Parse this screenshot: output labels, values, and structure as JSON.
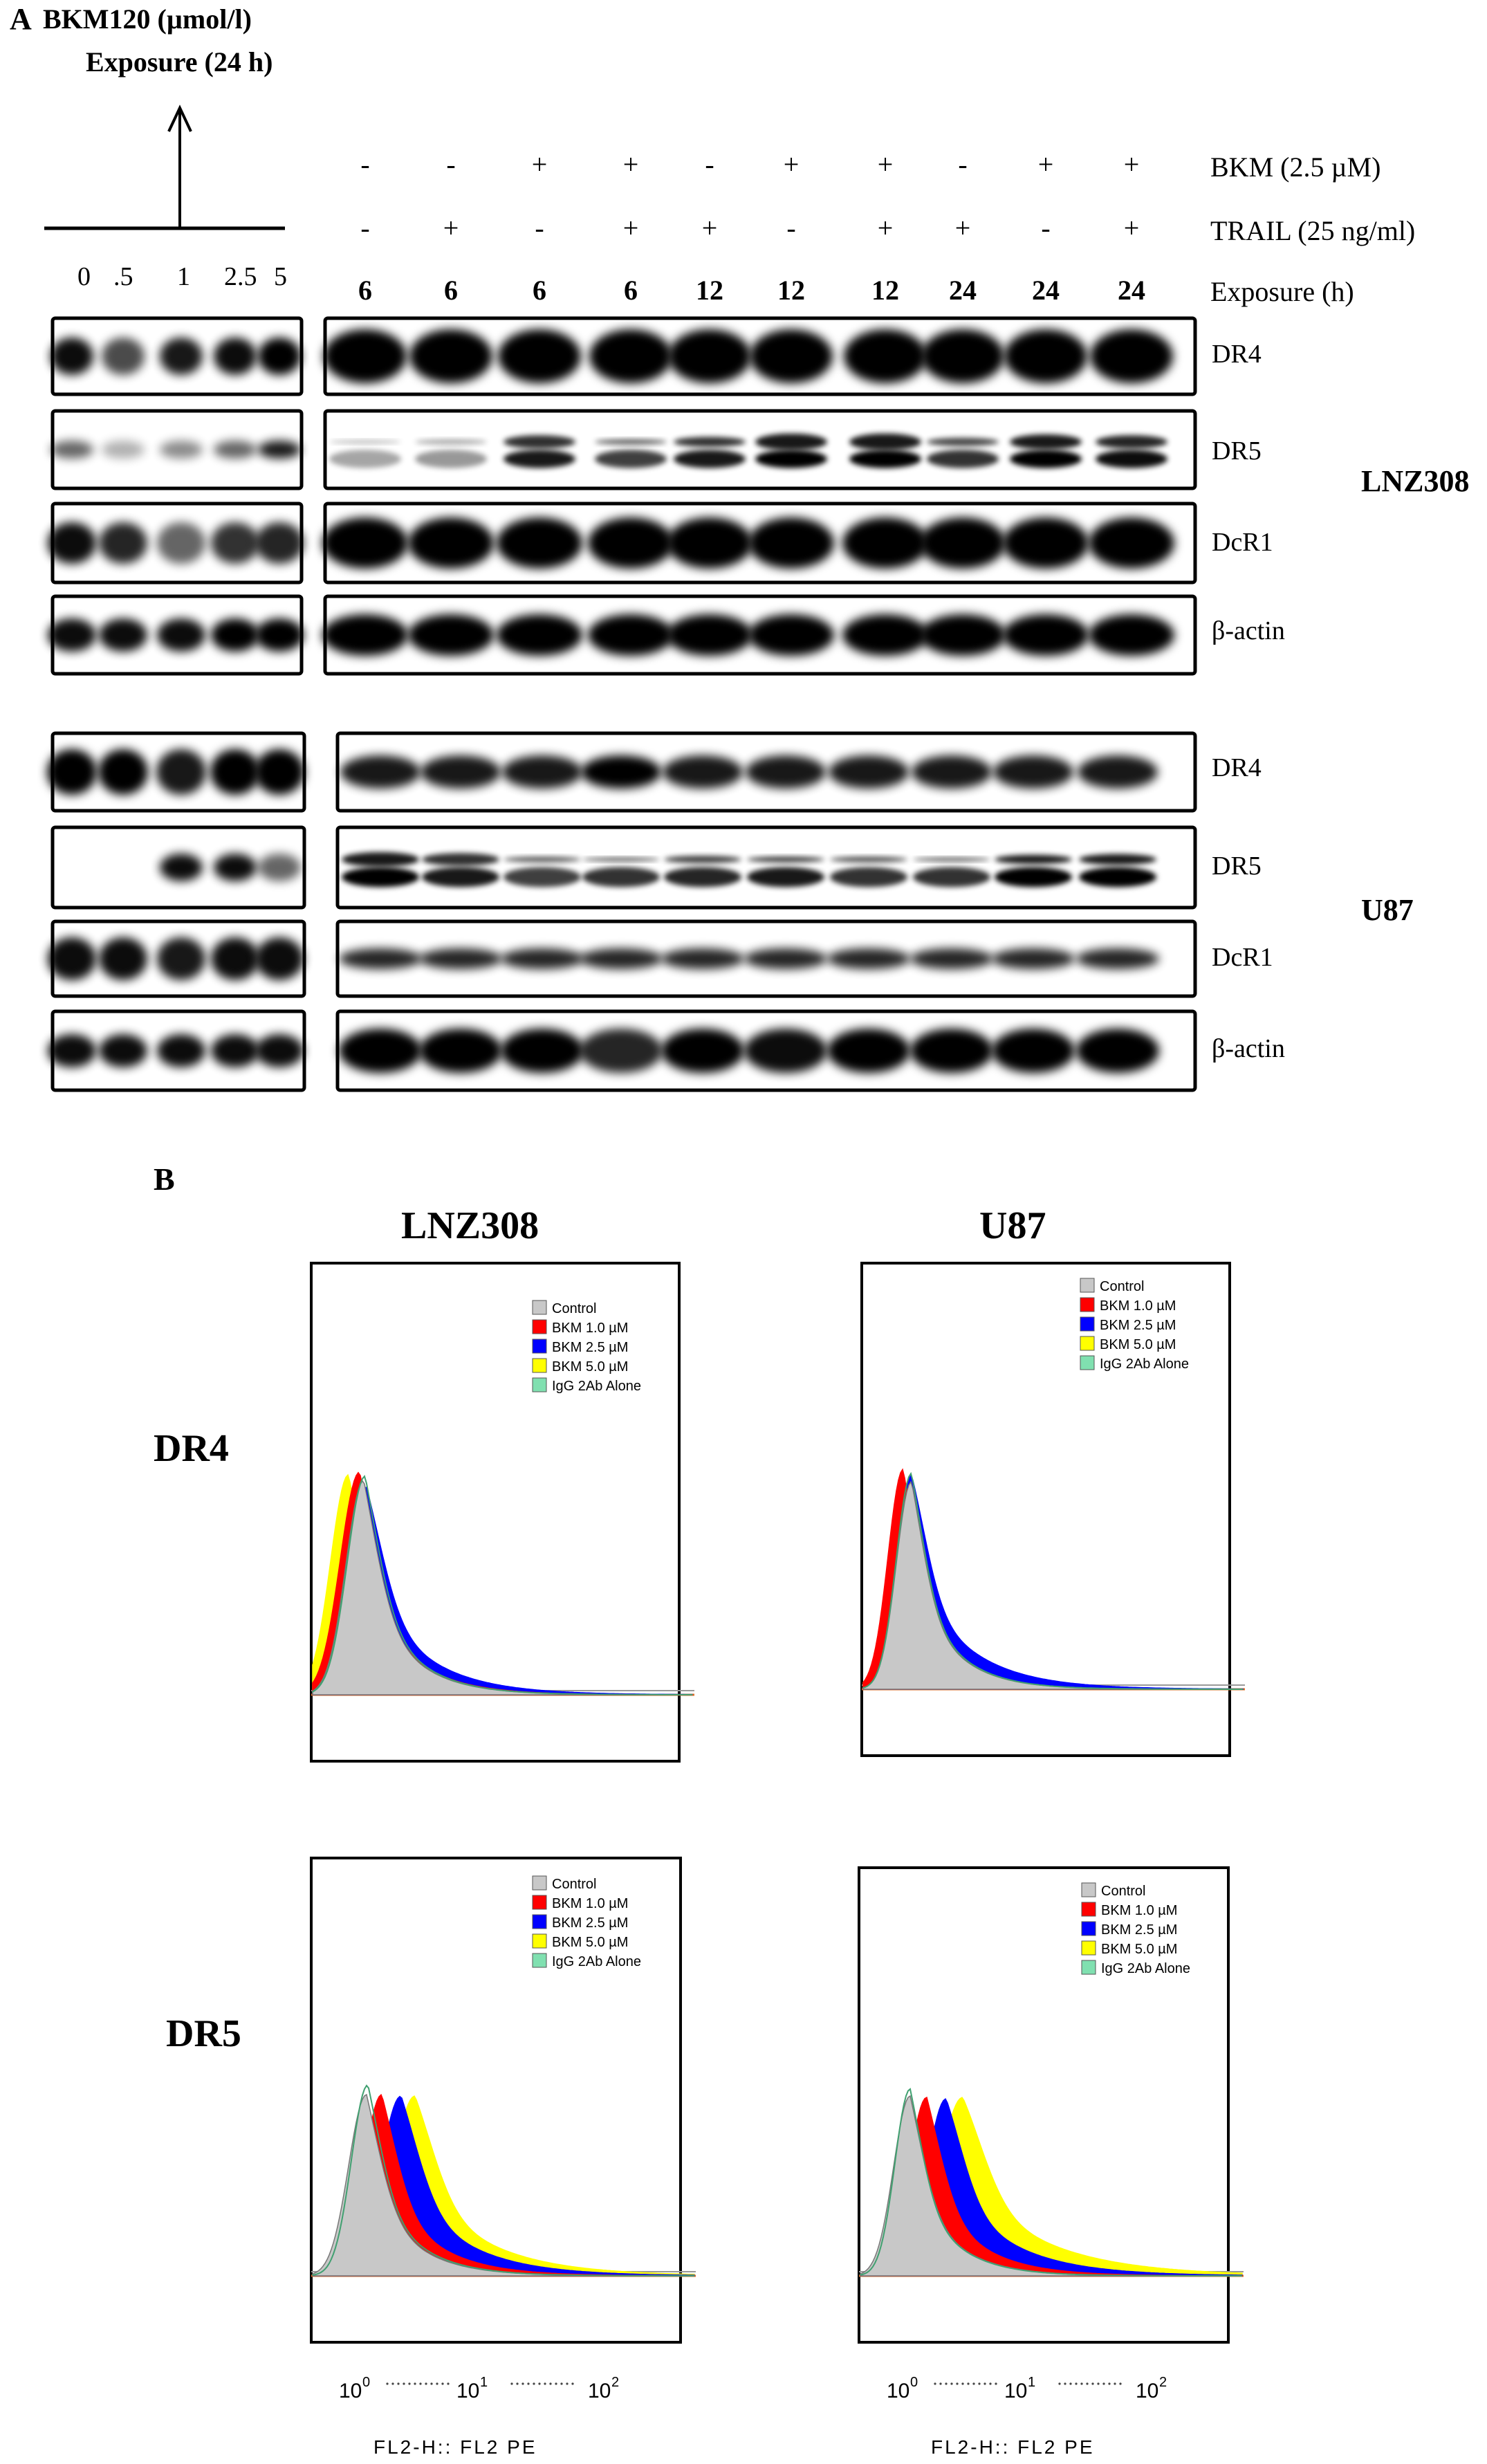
{
  "panel_a": {
    "letter": "A",
    "dose_title_line1": "BKM120 (µmol/l)",
    "dose_title_line2": "Exposure (24 h)",
    "dose_labels": [
      "0",
      ".5",
      "1",
      "2.5",
      "5"
    ],
    "rows": [
      {
        "label": "BKM (2.5 µM)",
        "values": [
          "-",
          "-",
          "+",
          "+",
          "-",
          "+",
          "+",
          "-",
          "+",
          "+"
        ]
      },
      {
        "label": "TRAIL (25 ng/ml)",
        "values": [
          "-",
          "+",
          "-",
          "+",
          "+",
          "-",
          "+",
          "+",
          "-",
          "+"
        ]
      },
      {
        "label": "Exposure (h)",
        "values": [
          "6",
          "6",
          "6",
          "6",
          "12",
          "12",
          "12",
          "24",
          "24",
          "24"
        ]
      }
    ],
    "blot_labels": [
      "DR4",
      "DR5",
      "DcR1",
      "β-actin"
    ],
    "cell_lines": [
      "LNZ308",
      "U87"
    ]
  },
  "panel_b": {
    "letter": "B",
    "column_titles": [
      "LNZ308",
      "U87"
    ],
    "row_titles": [
      "DR4",
      "DR5"
    ],
    "legend": [
      {
        "label": "Control",
        "color": "#c8c8c8"
      },
      {
        "label": "BKM 1.0 µM",
        "color": "#ff0000"
      },
      {
        "label": "BKM 2.5 µM",
        "color": "#0000ff"
      },
      {
        "label": "BKM 5.0 µM",
        "color": "#ffff00"
      },
      {
        "label": "IgG 2Ab Alone",
        "color": "#80e0b0"
      }
    ],
    "significance": "**",
    "axis_label": "FL2-H:: FL2  PE"
  }
}
